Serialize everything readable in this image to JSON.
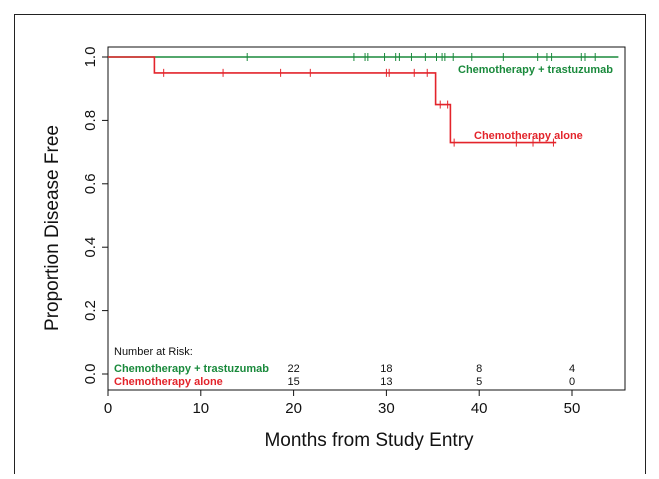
{
  "chart_data": {
    "type": "line",
    "xlabel": "Months from Study Entry",
    "ylabel": "Proportion Disease Free",
    "xlim": [
      0,
      57
    ],
    "ylim": [
      0,
      1.0
    ],
    "xticks": [
      "0",
      "10",
      "20",
      "30",
      "40",
      "50"
    ],
    "yticks": [
      "0.0",
      "0.2",
      "0.4",
      "0.6",
      "0.8",
      "1.0"
    ],
    "colors": {
      "green": "#1a8a3c",
      "red": "#e3242b",
      "axis": "#111111"
    },
    "series": [
      {
        "name": "Chemotherapy + trastuzumab",
        "color": "#1a8a3c",
        "steps": [
          [
            0,
            1.0
          ],
          [
            55,
            1.0
          ]
        ],
        "censor_times": [
          15,
          26.5,
          27.7,
          28,
          29.8,
          31,
          31.4,
          32.7,
          34.2,
          35.4,
          36,
          36.3,
          37.2,
          39.2,
          42.6,
          46.3,
          47.3,
          47.8,
          51,
          51.4,
          52.5
        ]
      },
      {
        "name": "Chemotherapy alone",
        "color": "#e3242b",
        "steps": [
          [
            0,
            1.0
          ],
          [
            5,
            1.0
          ],
          [
            5,
            0.95
          ],
          [
            35.3,
            0.95
          ],
          [
            35.3,
            0.85
          ],
          [
            36.9,
            0.85
          ],
          [
            36.9,
            0.73
          ],
          [
            48.3,
            0.73
          ]
        ],
        "censor_times": [
          [
            6,
            0.95
          ],
          [
            12.4,
            0.95
          ],
          [
            18.6,
            0.95
          ],
          [
            21.8,
            0.95
          ],
          [
            30,
            0.95
          ],
          [
            30.3,
            0.95
          ],
          [
            33,
            0.95
          ],
          [
            34.4,
            0.95
          ],
          [
            35.8,
            0.85
          ],
          [
            36.6,
            0.85
          ],
          [
            37.3,
            0.73
          ],
          [
            44,
            0.73
          ],
          [
            45.8,
            0.73
          ],
          [
            48,
            0.73
          ]
        ]
      }
    ],
    "series_labels": {
      "green": "Chemotherapy + trastuzumab",
      "red": "Chemotherapy alone"
    },
    "risk_table": {
      "title": "Number at Risk:",
      "rows": [
        {
          "label": "Chemotherapy + trastuzumab",
          "color": "#1a8a3c",
          "counts": [
            {
              "x": 20,
              "n": "22"
            },
            {
              "x": 30,
              "n": "18"
            },
            {
              "x": 40,
              "n": "8"
            },
            {
              "x": 50,
              "n": "4"
            }
          ]
        },
        {
          "label": "Chemotherapy alone",
          "color": "#e3242b",
          "counts": [
            {
              "x": 20,
              "n": "15"
            },
            {
              "x": 30,
              "n": "13"
            },
            {
              "x": 40,
              "n": "5"
            },
            {
              "x": 50,
              "n": "0"
            }
          ]
        }
      ]
    }
  }
}
